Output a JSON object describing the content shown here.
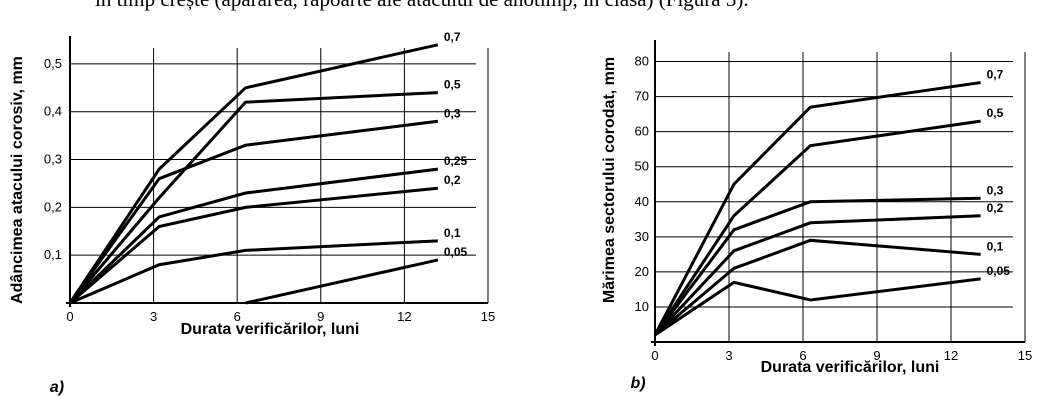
{
  "page_text": "în timp crește (apărarea, rapoarte ale atacului de anotimp, în clasă) (Figura 3).",
  "chart_data": [
    {
      "type": "line",
      "panel_label": "a)",
      "xlabel": "Durata verificărilor, luni",
      "ylabel": "Adâncimea atacului corosiv, mm",
      "xlim": [
        0,
        15
      ],
      "ylim": [
        0,
        0.55
      ],
      "x_ticks": [
        {
          "value": 0,
          "label": "0"
        },
        {
          "value": 3,
          "label": "3"
        },
        {
          "value": 6,
          "label": "6"
        },
        {
          "value": 9,
          "label": "9"
        },
        {
          "value": 12,
          "label": "12"
        },
        {
          "value": 15,
          "label": "15"
        }
      ],
      "y_ticks": [
        {
          "value": 0.1,
          "label": "0,1"
        },
        {
          "value": 0.2,
          "label": "0,2"
        },
        {
          "value": 0.3,
          "label": "0,3"
        },
        {
          "value": 0.4,
          "label": "0,4"
        },
        {
          "value": 0.5,
          "label": "0,5"
        }
      ],
      "grid": true,
      "series": [
        {
          "name": "0,7",
          "x": [
            0,
            3.2,
            6.3,
            13.2
          ],
          "y": [
            0,
            0.28,
            0.45,
            0.54
          ]
        },
        {
          "name": "0,5",
          "x": [
            0,
            3.2,
            6.3,
            13.2
          ],
          "y": [
            0,
            0.22,
            0.42,
            0.44
          ]
        },
        {
          "name": "0,3",
          "x": [
            0,
            3.2,
            6.3,
            13.2
          ],
          "y": [
            0,
            0.26,
            0.33,
            0.38
          ]
        },
        {
          "name": "0,25",
          "x": [
            0,
            3.2,
            6.3,
            13.2
          ],
          "y": [
            0,
            0.18,
            0.23,
            0.28
          ]
        },
        {
          "name": "0,2",
          "x": [
            0,
            3.2,
            6.3,
            13.2
          ],
          "y": [
            0,
            0.16,
            0.2,
            0.24
          ]
        },
        {
          "name": "0,1",
          "x": [
            0,
            3.2,
            6.3,
            13.2
          ],
          "y": [
            0,
            0.08,
            0.11,
            0.13
          ]
        },
        {
          "name": "0,05",
          "x": [
            6.3,
            13.2
          ],
          "y": [
            0,
            0.09
          ]
        }
      ]
    },
    {
      "type": "line",
      "panel_label": "b)",
      "xlabel": "Durata verificărilor, luni",
      "ylabel": "Mărimea sectorului corodat, mm",
      "xlim": [
        0,
        15
      ],
      "ylim": [
        0,
        85
      ],
      "x_ticks": [
        {
          "value": 0,
          "label": "0"
        },
        {
          "value": 3,
          "label": "3"
        },
        {
          "value": 6,
          "label": "6"
        },
        {
          "value": 9,
          "label": "9"
        },
        {
          "value": 12,
          "label": "12"
        },
        {
          "value": 15,
          "label": "15"
        }
      ],
      "y_ticks": [
        {
          "value": 10,
          "label": "10"
        },
        {
          "value": 20,
          "label": "20"
        },
        {
          "value": 30,
          "label": "30"
        },
        {
          "value": 40,
          "label": "40"
        },
        {
          "value": 50,
          "label": "50"
        },
        {
          "value": 60,
          "label": "60"
        },
        {
          "value": 70,
          "label": "70"
        },
        {
          "value": 80,
          "label": "80"
        }
      ],
      "grid": true,
      "series": [
        {
          "name": "0,7",
          "x": [
            0,
            3.2,
            6.3,
            13.2
          ],
          "y": [
            2,
            45,
            67,
            74
          ]
        },
        {
          "name": "0,5",
          "x": [
            0,
            3.2,
            6.3,
            13.2
          ],
          "y": [
            2,
            36,
            56,
            63
          ]
        },
        {
          "name": "0,3",
          "x": [
            0,
            3.2,
            6.3,
            13.2
          ],
          "y": [
            2,
            32,
            40,
            41
          ]
        },
        {
          "name": "0,2",
          "x": [
            0,
            3.2,
            6.3,
            13.2
          ],
          "y": [
            2,
            26,
            34,
            36
          ]
        },
        {
          "name": "0,1",
          "x": [
            0,
            3.2,
            6.3,
            13.2
          ],
          "y": [
            2,
            21,
            29,
            25
          ]
        },
        {
          "name": "0,05",
          "x": [
            0,
            3.2,
            6.3,
            13.2
          ],
          "y": [
            2,
            17,
            12,
            18
          ]
        }
      ]
    }
  ]
}
